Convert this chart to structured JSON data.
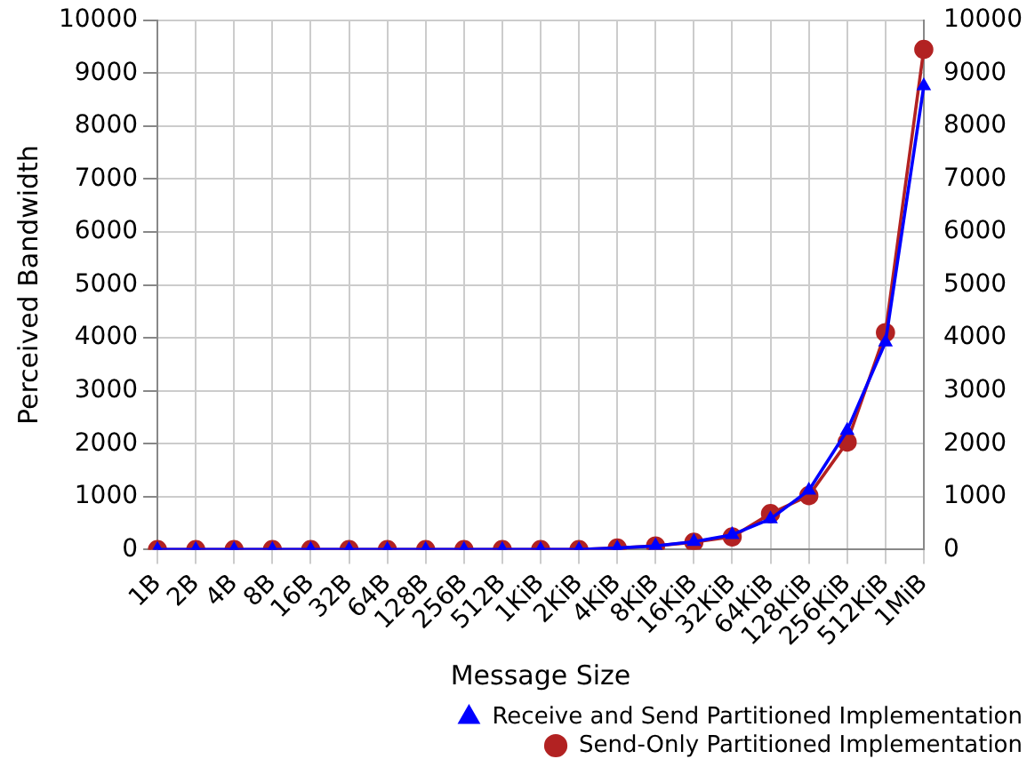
{
  "chart_data": {
    "type": "line",
    "xlabel": "Message Size",
    "ylabel": "Perceived Bandwidth",
    "categories": [
      "1B",
      "2B",
      "4B",
      "8B",
      "16B",
      "32B",
      "64B",
      "128B",
      "256B",
      "512B",
      "1KiB",
      "2KiB",
      "4KiB",
      "8KiB",
      "16KiB",
      "32KiB",
      "64KiB",
      "128KiB",
      "256KiB",
      "512KiB",
      "1MiB"
    ],
    "series": [
      {
        "name": "Send-Only Partitioned Implementation",
        "color": "#b22222",
        "marker": "circle",
        "values": [
          0,
          0,
          0,
          0,
          0,
          0,
          0,
          0,
          0,
          0,
          0,
          0,
          30,
          70,
          140,
          240,
          680,
          1020,
          2030,
          4100,
          9450
        ]
      },
      {
        "name": "Receive and Send Partitioned Implementation",
        "color": "#0000ff",
        "marker": "triangle",
        "values": [
          0,
          0,
          0,
          0,
          0,
          0,
          0,
          0,
          0,
          0,
          0,
          0,
          30,
          70,
          150,
          280,
          580,
          1120,
          2250,
          3920,
          8760
        ]
      }
    ],
    "ylim": [
      0,
      10000
    ],
    "yticks": [
      0,
      1000,
      2000,
      3000,
      4000,
      5000,
      6000,
      7000,
      8000,
      9000,
      10000
    ],
    "y2lim": [
      0,
      10000
    ],
    "y2ticks": [
      0,
      1000,
      2000,
      3000,
      4000,
      5000,
      6000,
      7000,
      8000,
      9000,
      10000
    ],
    "grid": true,
    "legend": "bottom right",
    "line_style": "solid"
  }
}
